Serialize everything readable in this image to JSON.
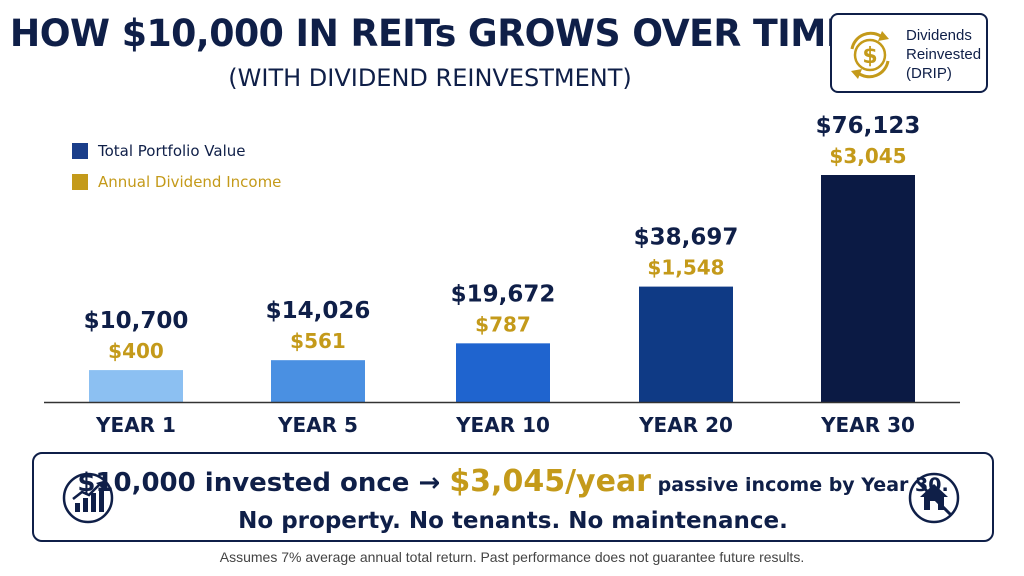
{
  "header": {
    "title": "HOW $10,000 IN REITs GROWS OVER TIME",
    "subtitle": "(WITH DIVIDEND REINVESTMENT)"
  },
  "drip_badge": {
    "lines": [
      "Dividends",
      "Reinvested",
      "(DRIP)"
    ],
    "icon": "dollar-cycle-icon"
  },
  "legend": {
    "items": [
      {
        "label": "Total Portfolio Value",
        "color": "#1a3e8a"
      },
      {
        "label": "Annual Dividend Income",
        "color": "#c49a1a"
      }
    ]
  },
  "chart_data": {
    "type": "bar",
    "categories": [
      "YEAR 1",
      "YEAR 5",
      "YEAR 10",
      "YEAR 20",
      "YEAR 30"
    ],
    "series": [
      {
        "name": "Total Portfolio Value",
        "values": [
          10700,
          14026,
          19672,
          38697,
          76123
        ]
      },
      {
        "name": "Annual Dividend Income",
        "values": [
          400,
          561,
          787,
          1548,
          3045
        ]
      }
    ],
    "value_labels": [
      "$10,700",
      "$14,026",
      "$19,672",
      "$38,697",
      "$76,123"
    ],
    "income_labels": [
      "$400",
      "$561",
      "$787",
      "$1,548",
      "$3,045"
    ],
    "bar_colors": [
      "#8cc0f2",
      "#4a90e2",
      "#1f64cf",
      "#0f3a85",
      "#0b1a44"
    ],
    "value_label_color": "#0f1f48",
    "income_label_color": "#c49a1a",
    "legend_position": "top-left",
    "grid": false
  },
  "banner": {
    "part1": "$10,000 invested once → ",
    "highlight": "$3,045/year",
    "part2": " passive income by Year 30.",
    "line2": "No property. No tenants. No maintenance.",
    "left_icon": "growth-chart-icon",
    "right_icon": "no-house-icon"
  },
  "footnote": "Assumes 7% average annual total return. Past performance does not guarantee future results."
}
